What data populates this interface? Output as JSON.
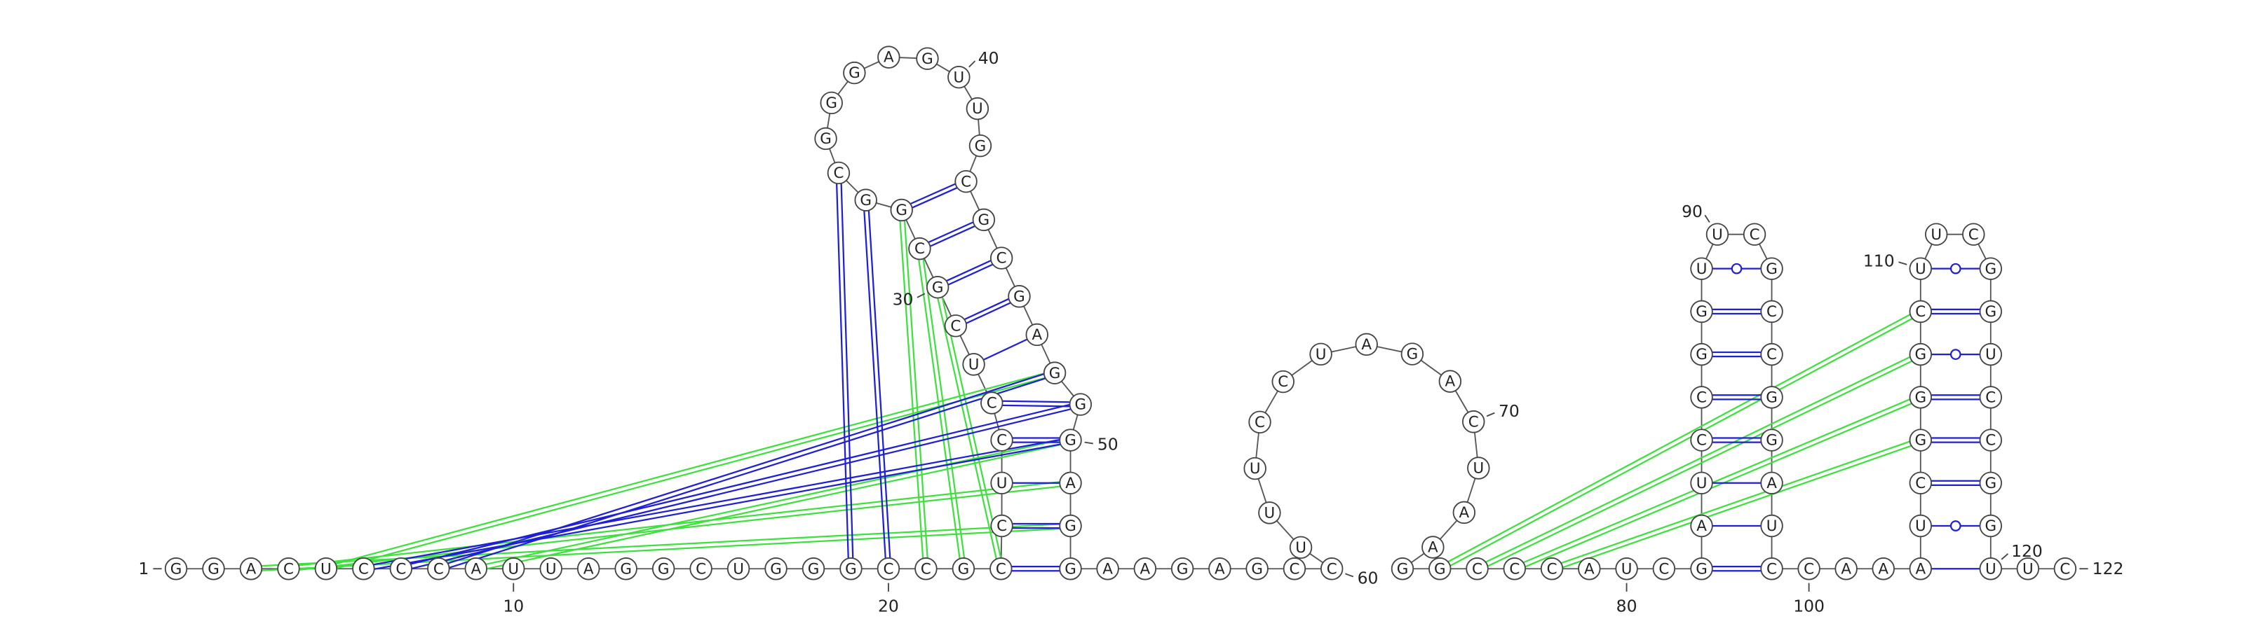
{
  "sequence": [
    "G",
    "G",
    "A",
    "C",
    "U",
    "C",
    "C",
    "C",
    "A",
    "U",
    "U",
    "A",
    "G",
    "G",
    "C",
    "U",
    "G",
    "G",
    "G",
    "C",
    "C",
    "G",
    "C",
    "C",
    "U",
    "C",
    "C",
    "U",
    "C",
    "G",
    "C",
    "G",
    "G",
    "C",
    "G",
    "G",
    "G",
    "A",
    "G",
    "U",
    "U",
    "G",
    "C",
    "G",
    "C",
    "G",
    "A",
    "G",
    "G",
    "G",
    "A",
    "G",
    "G",
    "A",
    "A",
    "G",
    "A",
    "G",
    "C",
    "C",
    "U",
    "U",
    "U",
    "C",
    "C",
    "U",
    "A",
    "G",
    "A",
    "C",
    "U",
    "A",
    "A",
    "G",
    "G",
    "C",
    "C",
    "C",
    "A",
    "U",
    "C",
    "G",
    "A",
    "U",
    "C",
    "C",
    "G",
    "G",
    "U",
    "U",
    "C",
    "G",
    "C",
    "C",
    "G",
    "G",
    "A",
    "U",
    "C",
    "C",
    "A",
    "A",
    "A",
    "U",
    "C",
    "G",
    "G",
    "G",
    "C",
    "U",
    "U",
    "C",
    "G",
    "G",
    "U",
    "C",
    "C",
    "G",
    "G",
    "U",
    "U",
    "C"
  ],
  "numbering": [
    1,
    10,
    20,
    30,
    40,
    50,
    60,
    70,
    80,
    90,
    100,
    110,
    120,
    122
  ]
}
